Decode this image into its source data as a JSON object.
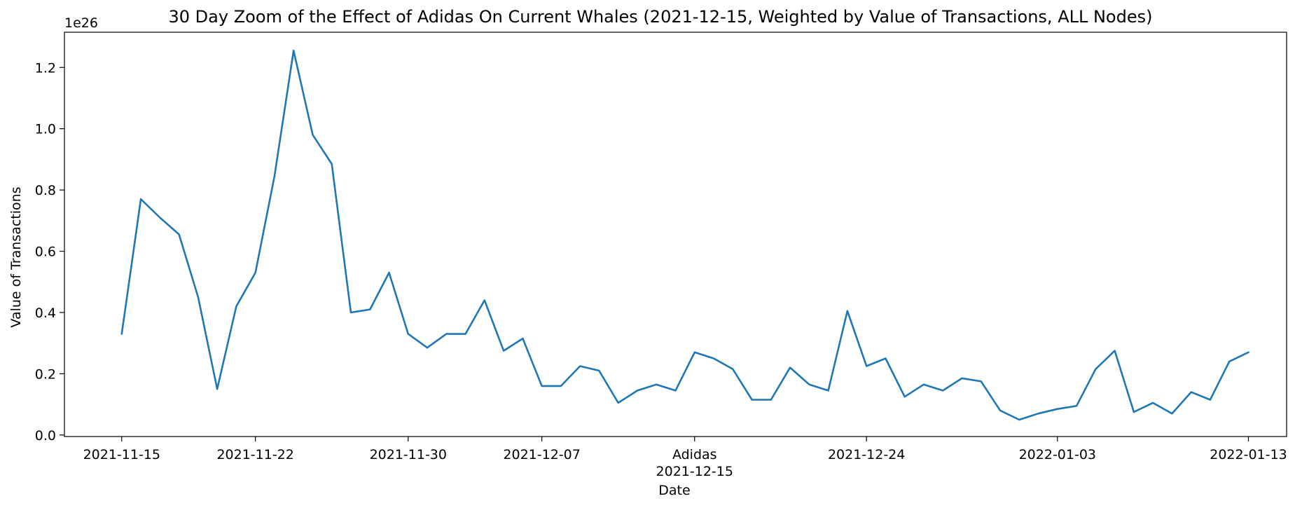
{
  "chart_data": {
    "type": "line",
    "title": "30 Day Zoom of the Effect of Adidas On Current Whales (2021-12-15, Weighted by Value of Transactions, ALL Nodes)",
    "xlabel": "Date",
    "ylabel": "Value of Transactions",
    "y_multiplier_label": "1e26",
    "y_ticks": [
      "0.0",
      "0.2",
      "0.4",
      "0.6",
      "0.8",
      "1.0",
      "1.2"
    ],
    "y_tick_values": [
      0.0,
      0.2,
      0.4,
      0.6,
      0.8,
      1.0,
      1.2
    ],
    "ylim": [
      -0.005,
      1.315
    ],
    "x_tick_labels": [
      {
        "date": "2021-11-15",
        "label": "2021-11-15"
      },
      {
        "date": "2021-11-22",
        "label": "2021-11-22"
      },
      {
        "date": "2021-11-30",
        "label": "2021-11-30"
      },
      {
        "date": "2021-12-07",
        "label": "2021-12-07"
      },
      {
        "date": "2021-12-15",
        "label": "2021-12-15"
      },
      {
        "date": "2021-12-24",
        "label": "2021-12-24"
      },
      {
        "date": "2022-01-03",
        "label": "2022-01-03"
      },
      {
        "date": "2022-01-13",
        "label": "2022-01-13"
      }
    ],
    "event": {
      "date": "2021-12-15",
      "label": "Adidas"
    },
    "xlim": [
      "2021-11-12",
      "2022-01-15"
    ],
    "grid": false,
    "series": [
      {
        "color": "#1f77b4",
        "x": [
          "2021-11-15",
          "2021-11-16",
          "2021-11-17",
          "2021-11-18",
          "2021-11-19",
          "2021-11-20",
          "2021-11-21",
          "2021-11-22",
          "2021-11-23",
          "2021-11-24",
          "2021-11-25",
          "2021-11-26",
          "2021-11-27",
          "2021-11-28",
          "2021-11-29",
          "2021-11-30",
          "2021-12-01",
          "2021-12-02",
          "2021-12-03",
          "2021-12-04",
          "2021-12-05",
          "2021-12-06",
          "2021-12-07",
          "2021-12-08",
          "2021-12-09",
          "2021-12-10",
          "2021-12-11",
          "2021-12-12",
          "2021-12-13",
          "2021-12-14",
          "2021-12-15",
          "2021-12-16",
          "2021-12-17",
          "2021-12-18",
          "2021-12-19",
          "2021-12-20",
          "2021-12-21",
          "2021-12-22",
          "2021-12-23",
          "2021-12-24",
          "2021-12-25",
          "2021-12-26",
          "2021-12-27",
          "2021-12-28",
          "2021-12-29",
          "2021-12-30",
          "2021-12-31",
          "2022-01-01",
          "2022-01-02",
          "2022-01-03",
          "2022-01-04",
          "2022-01-05",
          "2022-01-06",
          "2022-01-07",
          "2022-01-08",
          "2022-01-09",
          "2022-01-10",
          "2022-01-11",
          "2022-01-12",
          "2022-01-13"
        ],
        "y": [
          0.33,
          0.77,
          0.71,
          0.655,
          0.45,
          0.15,
          0.42,
          0.53,
          0.845,
          1.255,
          0.98,
          0.885,
          0.4,
          0.41,
          0.53,
          0.33,
          0.285,
          0.33,
          0.33,
          0.44,
          0.275,
          0.315,
          0.16,
          0.16,
          0.225,
          0.21,
          0.105,
          0.145,
          0.165,
          0.145,
          0.27,
          0.25,
          0.215,
          0.115,
          0.115,
          0.22,
          0.165,
          0.145,
          0.405,
          0.225,
          0.25,
          0.125,
          0.165,
          0.145,
          0.185,
          0.175,
          0.08,
          0.05,
          0.07,
          0.085,
          0.095,
          0.215,
          0.275,
          0.075,
          0.105,
          0.07,
          0.14,
          0.115,
          0.24,
          0.27
        ]
      }
    ]
  }
}
